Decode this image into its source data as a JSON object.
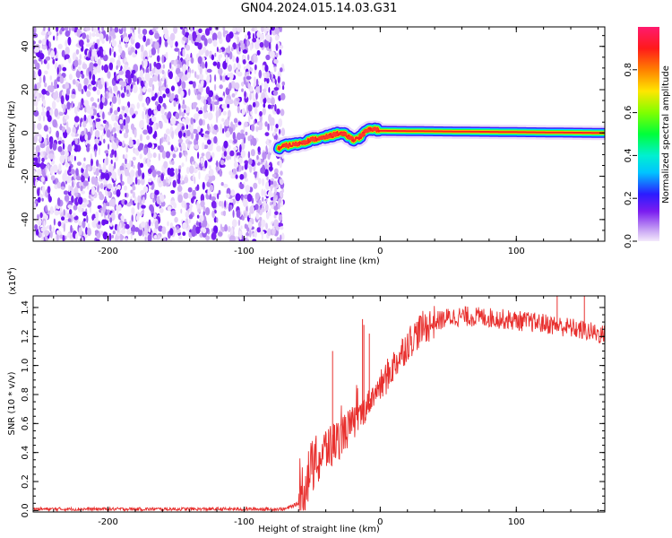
{
  "title": "GN04.2024.015.14.03.G31",
  "chart_data": [
    {
      "type": "heatmap",
      "name": "spectrogram",
      "xlabel": "Height of straight line (km)",
      "ylabel": "Frequency (Hz)",
      "xlim": [
        -255,
        165
      ],
      "ylim": [
        -50,
        49
      ],
      "x_ticks": [
        -200,
        -100,
        0,
        100
      ],
      "y_ticks": [
        -40,
        -20,
        0,
        20,
        40
      ],
      "noise_region_x": [
        -255,
        -75
      ],
      "signal_track": {
        "x": [
          -75,
          -70,
          -60,
          -50,
          -40,
          -30,
          -25,
          -20,
          -15,
          -10,
          -5,
          0,
          165
        ],
        "y": [
          -7,
          -6,
          -5,
          -3,
          -2,
          0,
          -1,
          -3,
          -2,
          1,
          2,
          1,
          0
        ]
      },
      "colorbar": {
        "label": "Normalized spectral amplitude",
        "range": [
          0,
          1
        ],
        "ticks": [
          0.0,
          0.2,
          0.4,
          0.6,
          0.8
        ]
      }
    },
    {
      "type": "line",
      "name": "snr",
      "xlabel": "Height of straight line (km)",
      "ylabel": "SNR (10 * v/v)",
      "y_multiplier": "(x10",
      "y_multiplier_exp": "4",
      "y_multiplier_close": ")",
      "xlim": [
        -255,
        165
      ],
      "ylim": [
        -0.01,
        1.48
      ],
      "x_ticks": [
        -200,
        -100,
        0,
        100
      ],
      "y_ticks": [
        0.0,
        0.2,
        0.4,
        0.6,
        0.8,
        1.0,
        1.2,
        1.4
      ],
      "color": "#e8302e",
      "series": {
        "x": [
          -255,
          -200,
          -150,
          -100,
          -70,
          -60,
          -55,
          -50,
          -45,
          -40,
          -35,
          -30,
          -25,
          -20,
          -15,
          -10,
          -5,
          0,
          10,
          20,
          30,
          40,
          50,
          60,
          80,
          100,
          120,
          140,
          165
        ],
        "y": [
          0.01,
          0.01,
          0.01,
          0.01,
          0.01,
          0.05,
          0.2,
          0.3,
          0.35,
          0.42,
          0.45,
          0.5,
          0.55,
          0.6,
          0.65,
          0.72,
          0.8,
          0.85,
          1.0,
          1.15,
          1.25,
          1.3,
          1.33,
          1.34,
          1.33,
          1.31,
          1.29,
          1.26,
          1.21
        ]
      },
      "spikes": [
        {
          "x": -35,
          "y": 1.1
        },
        {
          "x": -13,
          "y": 1.32
        },
        {
          "x": -12,
          "y": 1.28
        },
        {
          "x": -8,
          "y": 1.22
        },
        {
          "x": 130,
          "y": 1.48
        },
        {
          "x": 150,
          "y": 1.48
        }
      ]
    }
  ]
}
